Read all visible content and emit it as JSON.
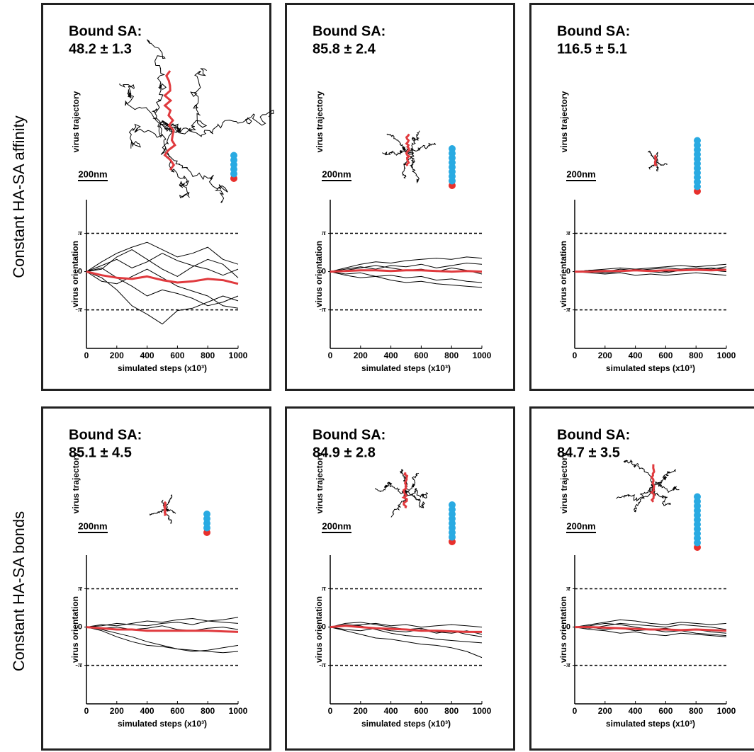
{
  "figure": {
    "row_labels": [
      "Constant HA-SA affinity",
      "Constant HA-SA bonds"
    ]
  },
  "chart_data": [
    {
      "type": "line",
      "title": "Bound SA:",
      "subtitle": "48.2 ± 1.3",
      "trajectory_label": "virus trajectory",
      "scale_bar": "200nm",
      "ylabel": "virus orientation",
      "xlabel": "simulated steps (x10³)",
      "x": [
        0,
        100,
        200,
        300,
        400,
        500,
        600,
        700,
        800,
        900,
        1000
      ],
      "xlim": [
        0,
        1000
      ],
      "xticks": [
        0,
        200,
        400,
        600,
        800,
        1000
      ],
      "ylim": [
        -6.3,
        5.9
      ],
      "yticks": [
        {
          "value": 3.1416,
          "label": "π"
        },
        0,
        {
          "value": -3.1416,
          "label": "-π"
        }
      ],
      "grid": true,
      "series": [
        {
          "color": "#000000",
          "values": [
            0,
            0.8,
            1.5,
            2.0,
            2.4,
            1.8,
            1.2,
            1.5,
            2.0,
            1.0,
            0.6
          ]
        },
        {
          "color": "#000000",
          "values": [
            0,
            -0.5,
            -1.5,
            -2.8,
            -3.5,
            -4.3,
            -3.2,
            -3.0,
            -2.5,
            -2.0,
            -2.4
          ]
        },
        {
          "color": "#000000",
          "values": [
            0,
            0.3,
            -0.5,
            -1.2,
            -2.0,
            -1.5,
            -1.8,
            -2.2,
            -2.8,
            -2.5,
            -2.0
          ]
        },
        {
          "color": "#000000",
          "values": [
            0,
            0.5,
            1.0,
            0.3,
            0.8,
            1.5,
            0.9,
            0.5,
            0.2,
            -0.3,
            0.2
          ]
        },
        {
          "color": "#000000",
          "values": [
            0,
            -0.8,
            -1.0,
            -0.4,
            0.2,
            -0.5,
            -1.2,
            -1.6,
            -2.0,
            -2.8,
            -3.0
          ]
        },
        {
          "color": "#000000",
          "values": [
            0,
            0.2,
            1.2,
            1.8,
            1.0,
            0.2,
            -0.4,
            0.4,
            1.0,
            0.6,
            -0.5
          ]
        },
        {
          "color": "#e03a3e",
          "values": [
            0,
            -0.3,
            -0.5,
            -0.6,
            -0.4,
            -0.7,
            -0.9,
            -0.8,
            -0.6,
            -0.7,
            -1.0
          ]
        }
      ]
    },
    {
      "type": "line",
      "title": "Bound SA:",
      "subtitle": "85.8 ± 2.4",
      "trajectory_label": "virus trajectory",
      "scale_bar": "200nm",
      "ylabel": "virus orientation",
      "xlabel": "simulated steps (x10³)",
      "x": [
        0,
        100,
        200,
        300,
        400,
        500,
        600,
        700,
        800,
        900,
        1000
      ],
      "xlim": [
        0,
        1000
      ],
      "xticks": [
        0,
        200,
        400,
        600,
        800,
        1000
      ],
      "ylim": [
        -6.3,
        5.9
      ],
      "yticks": [
        {
          "value": 3.1416,
          "label": "π"
        },
        0,
        {
          "value": -3.1416,
          "label": "-π"
        }
      ],
      "grid": true,
      "series": [
        {
          "color": "#000000",
          "values": [
            0,
            0.3,
            0.6,
            0.8,
            0.7,
            0.9,
            1.0,
            1.1,
            1.0,
            1.2,
            1.1
          ]
        },
        {
          "color": "#000000",
          "values": [
            0,
            -0.3,
            -0.5,
            -0.4,
            -0.7,
            -0.9,
            -0.8,
            -1.0,
            -1.1,
            -1.2,
            -1.3
          ]
        },
        {
          "color": "#000000",
          "values": [
            0,
            0.2,
            0.4,
            0.2,
            0.5,
            0.4,
            0.6,
            0.3,
            0.5,
            0.7,
            0.6
          ]
        },
        {
          "color": "#000000",
          "values": [
            0,
            -0.2,
            -0.1,
            -0.4,
            -0.3,
            -0.5,
            -0.4,
            -0.7,
            -0.6,
            -0.8,
            -0.9
          ]
        },
        {
          "color": "#000000",
          "values": [
            0,
            0.1,
            0.3,
            0.5,
            0.3,
            0.1,
            0.2,
            0.0,
            0.3,
            0.1,
            -0.2
          ]
        },
        {
          "color": "#e03a3e",
          "values": [
            0,
            0.05,
            0.1,
            0.1,
            0.05,
            0.1,
            0.1,
            0.05,
            0.0,
            0.05,
            0.0
          ]
        }
      ]
    },
    {
      "type": "line",
      "title": "Bound SA:",
      "subtitle": "116.5 ± 5.1",
      "trajectory_label": "virus trajectory",
      "scale_bar": "200nm",
      "ylabel": "virus orientation",
      "xlabel": "simulated steps (x10³)",
      "x": [
        0,
        100,
        200,
        300,
        400,
        500,
        600,
        700,
        800,
        900,
        1000
      ],
      "xlim": [
        0,
        1000
      ],
      "xticks": [
        0,
        200,
        400,
        600,
        800,
        1000
      ],
      "ylim": [
        -6.3,
        5.9
      ],
      "yticks": [
        {
          "value": 3.1416,
          "label": "π"
        },
        0,
        {
          "value": -3.1416,
          "label": "-π"
        }
      ],
      "grid": true,
      "series": [
        {
          "color": "#000000",
          "values": [
            0,
            0.1,
            0.2,
            0.3,
            0.2,
            0.3,
            0.4,
            0.5,
            0.4,
            0.5,
            0.6
          ]
        },
        {
          "color": "#000000",
          "values": [
            0,
            -0.1,
            -0.2,
            -0.1,
            -0.3,
            -0.2,
            -0.3,
            -0.2,
            -0.1,
            -0.2,
            -0.3
          ]
        },
        {
          "color": "#000000",
          "values": [
            0,
            0.1,
            0.0,
            0.2,
            0.1,
            0.2,
            0.3,
            0.2,
            0.3,
            0.2,
            0.4
          ]
        },
        {
          "color": "#000000",
          "values": [
            0,
            0.0,
            -0.1,
            0.0,
            0.1,
            0.0,
            -0.1,
            0.1,
            0.2,
            0.1,
            0.0
          ]
        },
        {
          "color": "#000000",
          "values": [
            0,
            0.1,
            0.1,
            0.0,
            0.2,
            0.1,
            0.0,
            0.1,
            0.2,
            0.3,
            0.2
          ]
        },
        {
          "color": "#e03a3e",
          "values": [
            0,
            0.0,
            0.05,
            0.05,
            0.1,
            0.05,
            0.1,
            0.1,
            0.15,
            0.1,
            0.15
          ]
        }
      ]
    },
    {
      "type": "line",
      "title": "Bound SA:",
      "subtitle": "85.1 ± 4.5",
      "trajectory_label": "virus trajectory",
      "scale_bar": "200nm",
      "ylabel": "virus orientation",
      "xlabel": "simulated steps (x10³)",
      "x": [
        0,
        100,
        200,
        300,
        400,
        500,
        600,
        700,
        800,
        900,
        1000
      ],
      "xlim": [
        0,
        1000
      ],
      "xticks": [
        0,
        200,
        400,
        600,
        800,
        1000
      ],
      "ylim": [
        -6.3,
        5.9
      ],
      "yticks": [
        {
          "value": 3.1416,
          "label": "π"
        },
        0,
        {
          "value": -3.1416,
          "label": "-π"
        }
      ],
      "grid": true,
      "series": [
        {
          "color": "#000000",
          "values": [
            0,
            -0.3,
            -0.8,
            -1.2,
            -1.5,
            -1.6,
            -1.8,
            -2.0,
            -1.9,
            -1.7,
            -1.5
          ]
        },
        {
          "color": "#000000",
          "values": [
            0,
            -0.2,
            -0.5,
            -0.8,
            -1.2,
            -1.5,
            -1.8,
            -1.9,
            -2.0,
            -2.1,
            -2.0
          ]
        },
        {
          "color": "#000000",
          "values": [
            0,
            0.2,
            0.1,
            0.3,
            0.5,
            0.4,
            0.6,
            0.7,
            0.5,
            0.6,
            0.8
          ]
        },
        {
          "color": "#000000",
          "values": [
            0,
            0.1,
            0.3,
            0.2,
            0.1,
            0.3,
            0.4,
            0.2,
            0.5,
            0.4,
            0.3
          ]
        },
        {
          "color": "#000000",
          "values": [
            0,
            -0.1,
            0.0,
            -0.2,
            -0.1,
            0.1,
            -0.2,
            -0.3,
            -0.1,
            0.0,
            -0.2
          ]
        },
        {
          "color": "#e03a3e",
          "values": [
            0,
            -0.1,
            -0.2,
            -0.2,
            -0.3,
            -0.3,
            -0.3,
            -0.3,
            -0.3,
            -0.35,
            -0.4
          ]
        }
      ]
    },
    {
      "type": "line",
      "title": "Bound SA:",
      "subtitle": "84.9 ± 2.8",
      "trajectory_label": "virus trajectory",
      "scale_bar": "200nm",
      "ylabel": "virus orientation",
      "xlabel": "simulated steps (x10³)",
      "x": [
        0,
        100,
        200,
        300,
        400,
        500,
        600,
        700,
        800,
        900,
        1000
      ],
      "xlim": [
        0,
        1000
      ],
      "xticks": [
        0,
        200,
        400,
        600,
        800,
        1000
      ],
      "ylim": [
        -6.3,
        5.9
      ],
      "yticks": [
        {
          "value": 3.1416,
          "label": "π"
        },
        0,
        {
          "value": -3.1416,
          "label": "-π"
        }
      ],
      "grid": true,
      "series": [
        {
          "color": "#000000",
          "values": [
            0,
            -0.3,
            -0.6,
            -0.9,
            -1.0,
            -1.2,
            -1.4,
            -1.5,
            -1.7,
            -2.0,
            -2.5
          ]
        },
        {
          "color": "#000000",
          "values": [
            0,
            0.2,
            0.1,
            -0.2,
            -0.5,
            -0.7,
            -0.8,
            -1.0,
            -1.1,
            -1.2,
            -1.3
          ]
        },
        {
          "color": "#000000",
          "values": [
            0,
            0.3,
            0.4,
            0.2,
            0.0,
            -0.2,
            -0.1,
            -0.4,
            -0.5,
            -0.3,
            -0.6
          ]
        },
        {
          "color": "#000000",
          "values": [
            0,
            0.1,
            0.2,
            0.3,
            0.1,
            0.2,
            0.0,
            0.1,
            0.2,
            0.1,
            0.0
          ]
        },
        {
          "color": "#000000",
          "values": [
            0,
            -0.2,
            -0.3,
            -0.1,
            -0.3,
            -0.4,
            -0.2,
            -0.5,
            -0.3,
            -0.6,
            -0.8
          ]
        },
        {
          "color": "#e03a3e",
          "values": [
            0,
            0.1,
            0.0,
            -0.1,
            -0.15,
            -0.2,
            -0.3,
            -0.3,
            -0.35,
            -0.4,
            -0.4
          ]
        }
      ]
    },
    {
      "type": "line",
      "title": "Bound SA:",
      "subtitle": "84.7 ± 3.5",
      "trajectory_label": "virus trajectory",
      "scale_bar": "200nm",
      "ylabel": "virus orientation",
      "xlabel": "simulated steps (x10³)",
      "x": [
        0,
        100,
        200,
        300,
        400,
        500,
        600,
        700,
        800,
        900,
        1000
      ],
      "xlim": [
        0,
        1000
      ],
      "xticks": [
        0,
        200,
        400,
        600,
        800,
        1000
      ],
      "ylim": [
        -6.3,
        5.9
      ],
      "yticks": [
        {
          "value": 3.1416,
          "label": "π"
        },
        0,
        {
          "value": -3.1416,
          "label": "-π"
        }
      ],
      "grid": true,
      "series": [
        {
          "color": "#000000",
          "values": [
            0,
            0.2,
            0.4,
            0.6,
            0.5,
            0.3,
            0.2,
            0.4,
            0.3,
            0.2,
            0.3
          ]
        },
        {
          "color": "#000000",
          "values": [
            0,
            -0.2,
            -0.3,
            -0.5,
            -0.4,
            -0.6,
            -0.7,
            -0.5,
            -0.6,
            -0.7,
            -0.8
          ]
        },
        {
          "color": "#000000",
          "values": [
            0,
            0.1,
            0.3,
            0.2,
            0.0,
            -0.2,
            -0.1,
            -0.3,
            -0.2,
            -0.4,
            -0.5
          ]
        },
        {
          "color": "#000000",
          "values": [
            0,
            -0.1,
            0.1,
            0.3,
            0.2,
            0.1,
            0.0,
            0.2,
            0.1,
            0.0,
            -0.2
          ]
        },
        {
          "color": "#000000",
          "values": [
            0,
            0.0,
            -0.2,
            -0.1,
            -0.3,
            -0.2,
            -0.4,
            -0.3,
            -0.5,
            -0.6,
            -0.7
          ]
        },
        {
          "color": "#e03a3e",
          "values": [
            0,
            0.0,
            -0.05,
            -0.1,
            -0.15,
            -0.2,
            -0.2,
            -0.25,
            -0.2,
            -0.25,
            -0.3
          ]
        }
      ]
    }
  ]
}
